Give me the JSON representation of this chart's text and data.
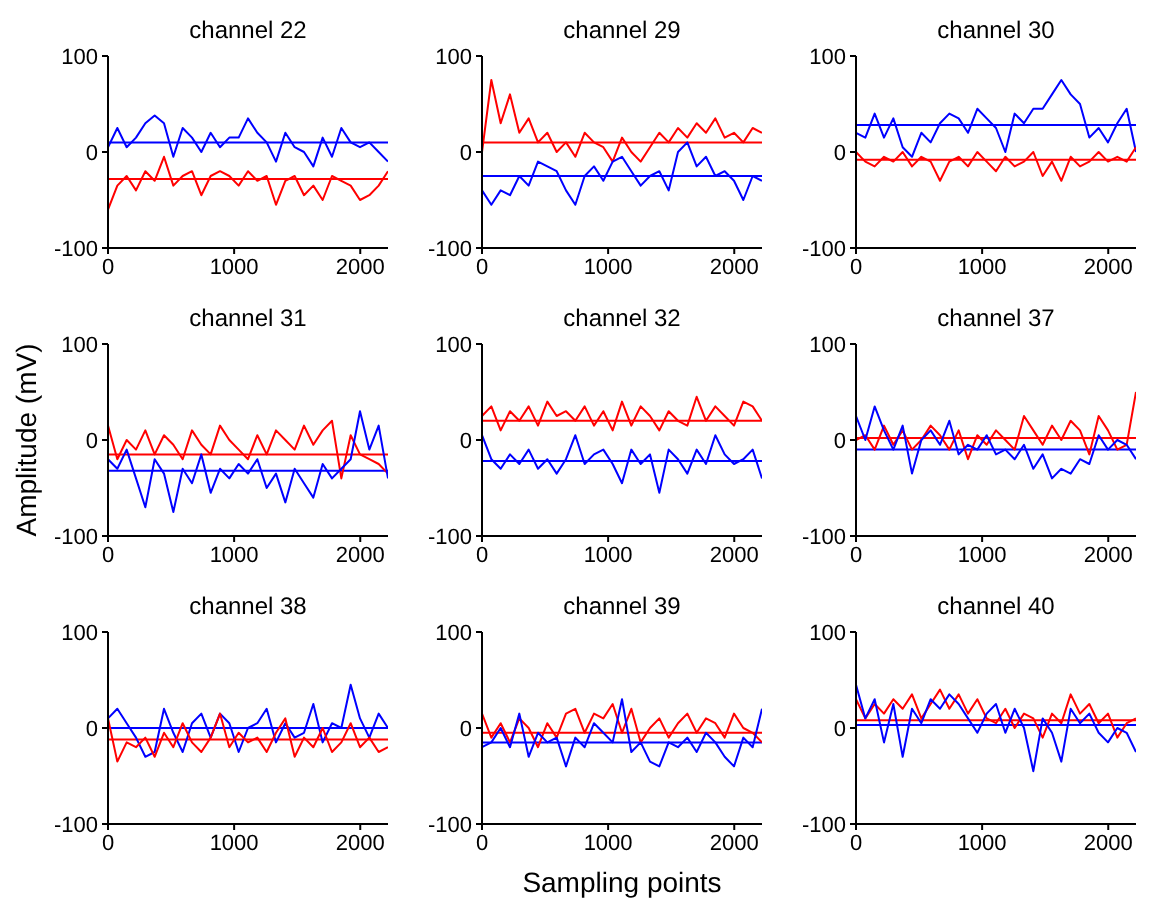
{
  "chart_data": [
    {
      "type": "line",
      "title": "channel 22",
      "marker": "none",
      "line_style": "solid",
      "x": [
        0,
        74,
        148,
        222,
        296,
        370,
        444,
        518,
        592,
        666,
        740,
        814,
        888,
        962,
        1036,
        1110,
        1184,
        1258,
        1332,
        1406,
        1480,
        1554,
        1628,
        1702,
        1776,
        1850,
        1924,
        1998,
        2072,
        2146,
        2220
      ],
      "xlim": [
        0,
        2220
      ],
      "xticks": [
        0,
        1000,
        2000
      ],
      "ylim": [
        -100,
        100
      ],
      "yticks": [
        -100,
        0,
        100
      ],
      "series": [
        {
          "color": "#0000ff",
          "values": [
            5,
            25,
            5,
            15,
            30,
            38,
            30,
            -5,
            25,
            15,
            0,
            20,
            5,
            15,
            15,
            35,
            20,
            10,
            -10,
            20,
            5,
            0,
            -15,
            15,
            -5,
            25,
            10,
            5,
            10,
            0,
            -10
          ]
        },
        {
          "color": "#ff0000",
          "values": [
            -60,
            -35,
            -25,
            -40,
            -20,
            -30,
            -5,
            -35,
            -25,
            -20,
            -45,
            -25,
            -20,
            -25,
            -35,
            -20,
            -30,
            -25,
            -55,
            -30,
            -25,
            -45,
            -35,
            -50,
            -25,
            -30,
            -35,
            -50,
            -45,
            -35,
            -20
          ]
        }
      ],
      "ref_lines": [
        {
          "axis": "y",
          "value": 10,
          "color": "#0000ff"
        },
        {
          "axis": "y",
          "value": -28,
          "color": "#ff0000"
        }
      ]
    },
    {
      "type": "line",
      "title": "channel 29",
      "marker": "none",
      "line_style": "solid",
      "x": [
        0,
        74,
        148,
        222,
        296,
        370,
        444,
        518,
        592,
        666,
        740,
        814,
        888,
        962,
        1036,
        1110,
        1184,
        1258,
        1332,
        1406,
        1480,
        1554,
        1628,
        1702,
        1776,
        1850,
        1924,
        1998,
        2072,
        2146,
        2220
      ],
      "xlim": [
        0,
        2220
      ],
      "xticks": [
        0,
        1000,
        2000
      ],
      "ylim": [
        -100,
        100
      ],
      "yticks": [
        -100,
        0,
        100
      ],
      "series": [
        {
          "color": "#ff0000",
          "values": [
            0,
            75,
            30,
            60,
            20,
            35,
            10,
            20,
            0,
            10,
            -5,
            20,
            10,
            5,
            -10,
            15,
            0,
            -10,
            5,
            20,
            10,
            25,
            15,
            30,
            20,
            35,
            15,
            20,
            10,
            25,
            20
          ]
        },
        {
          "color": "#0000ff",
          "values": [
            -40,
            -55,
            -40,
            -45,
            -25,
            -35,
            -10,
            -15,
            -20,
            -40,
            -55,
            -25,
            -15,
            -30,
            -10,
            -5,
            -20,
            -35,
            -25,
            -20,
            -40,
            0,
            10,
            -15,
            -5,
            -25,
            -20,
            -30,
            -50,
            -25,
            -30
          ]
        }
      ],
      "ref_lines": [
        {
          "axis": "y",
          "value": 10,
          "color": "#ff0000"
        },
        {
          "axis": "y",
          "value": -25,
          "color": "#0000ff"
        }
      ]
    },
    {
      "type": "line",
      "title": "channel 30",
      "marker": "none",
      "line_style": "solid",
      "x": [
        0,
        74,
        148,
        222,
        296,
        370,
        444,
        518,
        592,
        666,
        740,
        814,
        888,
        962,
        1036,
        1110,
        1184,
        1258,
        1332,
        1406,
        1480,
        1554,
        1628,
        1702,
        1776,
        1850,
        1924,
        1998,
        2072,
        2146,
        2220
      ],
      "xlim": [
        0,
        2220
      ],
      "xticks": [
        0,
        1000,
        2000
      ],
      "ylim": [
        -100,
        100
      ],
      "yticks": [
        -100,
        0,
        100
      ],
      "series": [
        {
          "color": "#0000ff",
          "values": [
            20,
            15,
            40,
            15,
            35,
            5,
            -5,
            20,
            10,
            30,
            40,
            35,
            20,
            45,
            35,
            25,
            0,
            40,
            30,
            45,
            45,
            60,
            75,
            60,
            50,
            15,
            25,
            10,
            30,
            45,
            0
          ]
        },
        {
          "color": "#ff0000",
          "values": [
            0,
            -10,
            -15,
            -5,
            -10,
            0,
            -15,
            -5,
            -10,
            -30,
            -10,
            -5,
            -15,
            0,
            -10,
            -20,
            -5,
            -15,
            -10,
            0,
            -25,
            -10,
            -30,
            -5,
            -15,
            -10,
            0,
            -10,
            -5,
            -10,
            5
          ]
        }
      ],
      "ref_lines": [
        {
          "axis": "y",
          "value": 28,
          "color": "#0000ff"
        },
        {
          "axis": "y",
          "value": -8,
          "color": "#ff0000"
        }
      ]
    },
    {
      "type": "line",
      "title": "channel 31",
      "ylabel": "Amplitude (mV)",
      "marker": "none",
      "line_style": "solid",
      "x": [
        0,
        74,
        148,
        222,
        296,
        370,
        444,
        518,
        592,
        666,
        740,
        814,
        888,
        962,
        1036,
        1110,
        1184,
        1258,
        1332,
        1406,
        1480,
        1554,
        1628,
        1702,
        1776,
        1850,
        1924,
        1998,
        2072,
        2146,
        2220
      ],
      "xlim": [
        0,
        2220
      ],
      "xticks": [
        0,
        1000,
        2000
      ],
      "ylim": [
        -100,
        100
      ],
      "yticks": [
        -100,
        0,
        100
      ],
      "series": [
        {
          "color": "#ff0000",
          "values": [
            15,
            -20,
            0,
            -10,
            10,
            -15,
            5,
            -5,
            -20,
            10,
            -5,
            -15,
            15,
            0,
            -10,
            -20,
            5,
            -15,
            10,
            0,
            -10,
            15,
            -5,
            10,
            20,
            -40,
            5,
            -15,
            -20,
            -25,
            -35
          ]
        },
        {
          "color": "#0000ff",
          "values": [
            -20,
            -30,
            -10,
            -40,
            -70,
            -20,
            -35,
            -75,
            -30,
            -45,
            -15,
            -55,
            -30,
            -40,
            -25,
            -35,
            -20,
            -50,
            -35,
            -65,
            -30,
            -45,
            -60,
            -25,
            -40,
            -30,
            -20,
            30,
            -10,
            15,
            -40
          ]
        }
      ],
      "ref_lines": [
        {
          "axis": "y",
          "value": -15,
          "color": "#ff0000"
        },
        {
          "axis": "y",
          "value": -32,
          "color": "#0000ff"
        }
      ]
    },
    {
      "type": "line",
      "title": "channel 32",
      "marker": "none",
      "line_style": "solid",
      "x": [
        0,
        74,
        148,
        222,
        296,
        370,
        444,
        518,
        592,
        666,
        740,
        814,
        888,
        962,
        1036,
        1110,
        1184,
        1258,
        1332,
        1406,
        1480,
        1554,
        1628,
        1702,
        1776,
        1850,
        1924,
        1998,
        2072,
        2146,
        2220
      ],
      "xlim": [
        0,
        2220
      ],
      "xticks": [
        0,
        1000,
        2000
      ],
      "ylim": [
        -100,
        100
      ],
      "yticks": [
        -100,
        0,
        100
      ],
      "series": [
        {
          "color": "#ff0000",
          "values": [
            25,
            35,
            10,
            30,
            20,
            35,
            15,
            40,
            25,
            30,
            20,
            35,
            15,
            30,
            10,
            40,
            15,
            35,
            25,
            10,
            30,
            20,
            15,
            45,
            20,
            35,
            25,
            15,
            40,
            35,
            20
          ]
        },
        {
          "color": "#0000ff",
          "values": [
            5,
            -20,
            -30,
            -15,
            -25,
            -10,
            -30,
            -20,
            -35,
            -20,
            5,
            -25,
            -15,
            -10,
            -25,
            -45,
            -10,
            -25,
            -15,
            -55,
            -10,
            -20,
            -35,
            -10,
            -25,
            5,
            -15,
            -25,
            -20,
            -10,
            -40
          ]
        }
      ],
      "ref_lines": [
        {
          "axis": "y",
          "value": 20,
          "color": "#ff0000"
        },
        {
          "axis": "y",
          "value": -22,
          "color": "#0000ff"
        }
      ]
    },
    {
      "type": "line",
      "title": "channel 37",
      "marker": "none",
      "line_style": "solid",
      "x": [
        0,
        74,
        148,
        222,
        296,
        370,
        444,
        518,
        592,
        666,
        740,
        814,
        888,
        962,
        1036,
        1110,
        1184,
        1258,
        1332,
        1406,
        1480,
        1554,
        1628,
        1702,
        1776,
        1850,
        1924,
        1998,
        2072,
        2146,
        2220
      ],
      "xlim": [
        0,
        2220
      ],
      "xticks": [
        0,
        1000,
        2000
      ],
      "ylim": [
        -100,
        100
      ],
      "yticks": [
        -100,
        0,
        100
      ],
      "series": [
        {
          "color": "#ff0000",
          "values": [
            0,
            5,
            -10,
            15,
            -5,
            10,
            -10,
            0,
            15,
            5,
            -10,
            10,
            -20,
            5,
            -5,
            10,
            0,
            -10,
            25,
            10,
            -5,
            15,
            0,
            20,
            10,
            -15,
            25,
            10,
            -10,
            -5,
            50
          ]
        },
        {
          "color": "#0000ff",
          "values": [
            25,
            0,
            35,
            10,
            -10,
            15,
            -35,
            0,
            10,
            -5,
            20,
            -15,
            -5,
            -10,
            5,
            -15,
            -10,
            -20,
            -5,
            -30,
            -15,
            -40,
            -30,
            -35,
            -20,
            -25,
            5,
            -10,
            0,
            -5,
            -20
          ]
        }
      ],
      "ref_lines": [
        {
          "axis": "y",
          "value": 2,
          "color": "#ff0000"
        },
        {
          "axis": "y",
          "value": -10,
          "color": "#0000ff"
        }
      ]
    },
    {
      "type": "line",
      "title": "channel 38",
      "marker": "none",
      "line_style": "solid",
      "x": [
        0,
        74,
        148,
        222,
        296,
        370,
        444,
        518,
        592,
        666,
        740,
        814,
        888,
        962,
        1036,
        1110,
        1184,
        1258,
        1332,
        1406,
        1480,
        1554,
        1628,
        1702,
        1776,
        1850,
        1924,
        1998,
        2072,
        2146,
        2220
      ],
      "xlim": [
        0,
        2220
      ],
      "xticks": [
        0,
        1000,
        2000
      ],
      "ylim": [
        -100,
        100
      ],
      "yticks": [
        -100,
        0,
        100
      ],
      "series": [
        {
          "color": "#0000ff",
          "values": [
            10,
            20,
            5,
            -10,
            -30,
            -25,
            20,
            -5,
            -25,
            5,
            15,
            -10,
            15,
            5,
            -25,
            0,
            5,
            20,
            -15,
            5,
            -10,
            -5,
            25,
            -15,
            5,
            0,
            45,
            10,
            -10,
            15,
            0
          ]
        },
        {
          "color": "#ff0000",
          "values": [
            10,
            -35,
            -15,
            -20,
            -10,
            -30,
            -5,
            -20,
            5,
            -15,
            -25,
            -10,
            15,
            -20,
            -5,
            -15,
            -10,
            -25,
            -5,
            10,
            -30,
            -10,
            -20,
            0,
            -25,
            -15,
            5,
            -20,
            -10,
            -25,
            -20
          ]
        }
      ],
      "ref_lines": [
        {
          "axis": "y",
          "value": 0,
          "color": "#0000ff"
        },
        {
          "axis": "y",
          "value": -12,
          "color": "#ff0000"
        }
      ]
    },
    {
      "type": "line",
      "title": "channel 39",
      "xlabel": "Sampling points",
      "marker": "none",
      "line_style": "solid",
      "x": [
        0,
        74,
        148,
        222,
        296,
        370,
        444,
        518,
        592,
        666,
        740,
        814,
        888,
        962,
        1036,
        1110,
        1184,
        1258,
        1332,
        1406,
        1480,
        1554,
        1628,
        1702,
        1776,
        1850,
        1924,
        1998,
        2072,
        2146,
        2220
      ],
      "xlim": [
        0,
        2220
      ],
      "xticks": [
        0,
        1000,
        2000
      ],
      "ylim": [
        -100,
        100
      ],
      "yticks": [
        -100,
        0,
        100
      ],
      "series": [
        {
          "color": "#ff0000",
          "values": [
            15,
            -10,
            5,
            -15,
            10,
            0,
            -20,
            5,
            -10,
            15,
            20,
            -5,
            15,
            10,
            25,
            -5,
            20,
            -15,
            0,
            10,
            -10,
            5,
            15,
            -5,
            10,
            5,
            -10,
            15,
            0,
            -5,
            -15
          ]
        },
        {
          "color": "#0000ff",
          "values": [
            -20,
            -15,
            0,
            -20,
            15,
            -30,
            -5,
            -15,
            -10,
            -40,
            -10,
            -20,
            5,
            -5,
            -15,
            30,
            -25,
            -15,
            -35,
            -40,
            -15,
            -20,
            -10,
            -25,
            -5,
            -15,
            -30,
            -40,
            -10,
            -20,
            20
          ]
        }
      ],
      "ref_lines": [
        {
          "axis": "y",
          "value": -5,
          "color": "#ff0000"
        },
        {
          "axis": "y",
          "value": -15,
          "color": "#0000ff"
        }
      ]
    },
    {
      "type": "line",
      "title": "channel 40",
      "marker": "none",
      "line_style": "solid",
      "x": [
        0,
        74,
        148,
        222,
        296,
        370,
        444,
        518,
        592,
        666,
        740,
        814,
        888,
        962,
        1036,
        1110,
        1184,
        1258,
        1332,
        1406,
        1480,
        1554,
        1628,
        1702,
        1776,
        1850,
        1924,
        1998,
        2072,
        2146,
        2220
      ],
      "xlim": [
        0,
        2220
      ],
      "xticks": [
        0,
        1000,
        2000
      ],
      "ylim": [
        -100,
        100
      ],
      "yticks": [
        -100,
        0,
        100
      ],
      "series": [
        {
          "color": "#ff0000",
          "values": [
            30,
            10,
            25,
            15,
            30,
            20,
            35,
            10,
            25,
            40,
            20,
            35,
            15,
            30,
            10,
            5,
            20,
            0,
            15,
            10,
            -10,
            15,
            5,
            35,
            15,
            25,
            5,
            15,
            -10,
            5,
            10
          ]
        },
        {
          "color": "#0000ff",
          "values": [
            45,
            10,
            30,
            -15,
            25,
            -30,
            20,
            5,
            30,
            20,
            35,
            25,
            10,
            -5,
            15,
            25,
            -5,
            20,
            0,
            -45,
            10,
            -5,
            -35,
            20,
            5,
            15,
            -5,
            -15,
            0,
            -5,
            -25
          ]
        }
      ],
      "ref_lines": [
        {
          "axis": "y",
          "value": 8,
          "color": "#ff0000"
        },
        {
          "axis": "y",
          "value": 3,
          "color": "#0000ff"
        }
      ]
    }
  ]
}
